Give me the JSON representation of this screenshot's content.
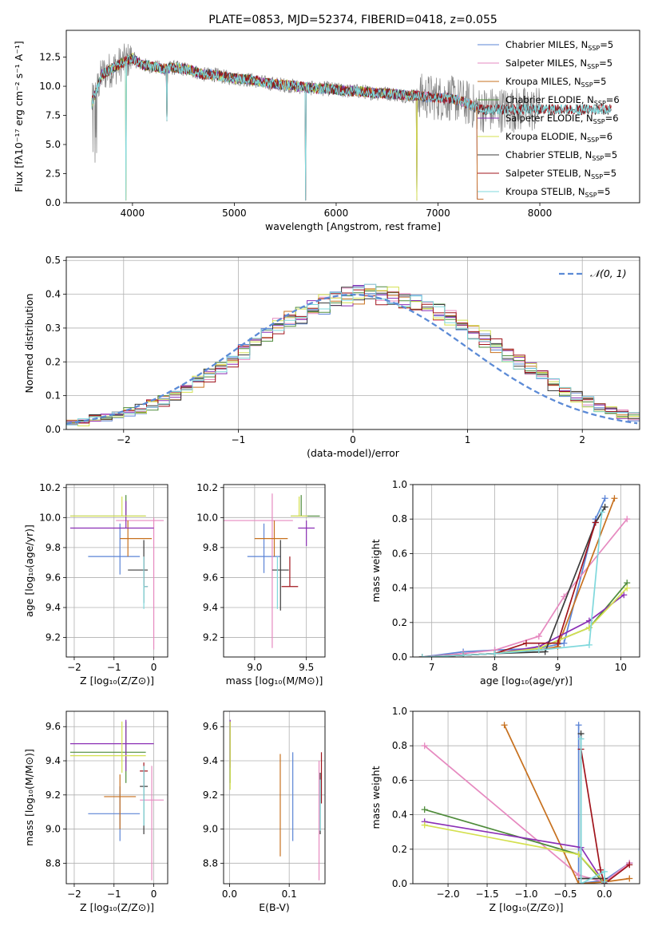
{
  "colors": [
    "#5b84d6",
    "#e68ac0",
    "#c7711f",
    "#4e8b3a",
    "#8b2fb5",
    "#d4e04f",
    "#3c3c3c",
    "#a0141c",
    "#7fd8dc"
  ],
  "chart_data": [
    {
      "id": "spectrum",
      "type": "line",
      "title": "PLATE=0853, MJD=52374, FIBERID=0418, z=0.055",
      "xlabel": "wavelength [Angstrom, rest frame]",
      "ylabel": "Flux [fλ10⁻¹⁷ erg cm⁻² s⁻¹ A⁻¹]",
      "xlim": [
        3350,
        8980
      ],
      "ylim": [
        0,
        14.8
      ],
      "xticks": [
        4000,
        5000,
        6000,
        7000,
        8000
      ],
      "yticks": [
        0.0,
        2.5,
        5.0,
        7.5,
        10.0,
        12.5
      ],
      "grid": false,
      "legend_position": "top-right",
      "data_line": {
        "x": [
          3600,
          3700,
          3800,
          3900,
          4000,
          4100,
          4200,
          4300,
          4400,
          4500,
          4600,
          4700,
          4800,
          4900,
          5000,
          5100,
          5200,
          5300,
          5400,
          5500,
          5600,
          5700,
          5800,
          5900,
          6000,
          6100,
          6200,
          6300,
          6400,
          6500,
          6600,
          6700,
          6800,
          6900,
          7000,
          7100,
          7200,
          7300,
          7400
        ],
        "y": [
          8.5,
          11.0,
          11.5,
          12.0,
          12.4,
          11.8,
          11.7,
          11.5,
          11.6,
          11.5,
          11.3,
          11.0,
          11.0,
          10.8,
          10.7,
          10.6,
          10.5,
          10.3,
          10.2,
          10.1,
          10.0,
          9.9,
          9.8,
          9.8,
          9.7,
          9.6,
          9.6,
          9.5,
          9.4,
          9.4,
          9.3,
          9.2,
          9.2,
          9.1,
          9.0,
          9.0,
          8.8,
          8.5,
          8.0
        ]
      },
      "series": [
        {
          "name": "Chabrier MILES, N_SSP=5",
          "x_end": 7450
        },
        {
          "name": "Salpeter MILES, N_SSP=5",
          "x_end": 7450
        },
        {
          "name": "Kroupa MILES, N_SSP=5",
          "x_end": 7450
        },
        {
          "name": "Chabrier ELODIE, N_SSP=6",
          "x_end": 6800
        },
        {
          "name": "Salpeter ELODIE, N_SSP=6",
          "x_end": 6800
        },
        {
          "name": "Kroupa ELODIE, N_SSP=6",
          "x_end": 6800
        },
        {
          "name": "Chabrier STELIB, N_SSP=5",
          "x_end": 8700
        },
        {
          "name": "Salpeter STELIB, N_SSP=5",
          "x_end": 8700
        },
        {
          "name": "Kroupa STELIB, N_SSP=5",
          "x_end": 8700
        }
      ]
    },
    {
      "id": "residuals",
      "type": "bar",
      "xlabel": "(data-model)/error",
      "ylabel": "Normed distribution",
      "xlim": [
        -2.5,
        2.5
      ],
      "ylim": [
        0,
        0.51
      ],
      "xticks": [
        -2,
        -1,
        0,
        1,
        2
      ],
      "yticks": [
        0.0,
        0.1,
        0.2,
        0.3,
        0.4,
        0.5
      ],
      "grid": true,
      "legend_position": "top-right",
      "legend_label": "𝒩(0, 1)",
      "bin_width": 0.1,
      "base_values": [
        0.02,
        0.021,
        0.032,
        0.037,
        0.045,
        0.052,
        0.06,
        0.072,
        0.085,
        0.099,
        0.117,
        0.14,
        0.16,
        0.185,
        0.205,
        0.23,
        0.255,
        0.28,
        0.305,
        0.325,
        0.34,
        0.355,
        0.37,
        0.385,
        0.395,
        0.4,
        0.4,
        0.398,
        0.392,
        0.383,
        0.372,
        0.36,
        0.346,
        0.33,
        0.311,
        0.29,
        0.268,
        0.245,
        0.222,
        0.198,
        0.176,
        0.154,
        0.133,
        0.114,
        0.097,
        0.082,
        0.068,
        0.056,
        0.045,
        0.037
      ]
    },
    {
      "id": "age-vs-z",
      "type": "scatter",
      "xlabel": "Z [log₁₀(Z/Z⊙)]",
      "ylabel": "age  [log₁₀(age/yr)]",
      "xlim": [
        -2.2,
        0.35
      ],
      "ylim": [
        9.07,
        10.22
      ],
      "xticks": [
        -2,
        -1,
        0
      ],
      "yticks": [
        9.2,
        9.4,
        9.6,
        9.8,
        10.0,
        10.2
      ],
      "grid": true,
      "points": [
        {
          "x": -0.85,
          "y": 9.74,
          "xerr": [
            0.8,
            0.5
          ],
          "yerr": [
            0.12,
            0.22
          ]
        },
        {
          "x": 0.0,
          "y": 9.98,
          "xerr": [
            0.95,
            0.25
          ],
          "yerr": [
            0.86,
            0.02
          ]
        },
        {
          "x": -0.65,
          "y": 9.86,
          "xerr": [
            0.2,
            0.6
          ],
          "yerr": [
            0.12,
            0.12
          ]
        },
        {
          "x": -0.7,
          "y": 10.01,
          "xerr": [
            1.4,
            0.5
          ],
          "yerr": [
            0.0,
            0.14
          ]
        },
        {
          "x": -0.7,
          "y": 9.93,
          "xerr": [
            1.4,
            0.7
          ],
          "yerr": [
            0.0,
            0.18
          ]
        },
        {
          "x": -0.8,
          "y": 10.01,
          "xerr": [
            1.3,
            0.6
          ],
          "yerr": [
            0.0,
            0.13
          ]
        },
        {
          "x": -0.25,
          "y": 9.65,
          "xerr": [
            0.4,
            0.1
          ],
          "yerr": [
            0.22,
            0.2
          ]
        },
        {
          "x": -0.25,
          "y": 9.54,
          "xerr": [
            0.0,
            0.1
          ],
          "yerr": [
            0.0,
            0.2
          ]
        },
        {
          "x": -0.25,
          "y": 9.54,
          "xerr": [
            0.0,
            0.1
          ],
          "yerr": [
            0.15,
            0.2
          ]
        }
      ]
    },
    {
      "id": "age-vs-mass",
      "type": "scatter",
      "xlabel": "mass [log₁₀(M/M⊙)]",
      "ylabel": "",
      "xlim": [
        8.7,
        9.68
      ],
      "ylim": [
        9.07,
        10.22
      ],
      "xticks": [
        9.0,
        9.5
      ],
      "yticks": [
        9.2,
        9.4,
        9.6,
        9.8,
        10.0,
        10.2
      ],
      "grid": true,
      "points": [
        {
          "x": 9.09,
          "y": 9.74,
          "xerr": [
            0.16,
            0.16
          ],
          "yerr": [
            0.11,
            0.22
          ]
        },
        {
          "x": 9.17,
          "y": 9.98,
          "xerr": [
            0.47,
            0.2
          ],
          "yerr": [
            0.85,
            0.18
          ]
        },
        {
          "x": 9.19,
          "y": 9.86,
          "xerr": [
            0.19,
            0.13
          ],
          "yerr": [
            0.12,
            0.12
          ]
        },
        {
          "x": 9.45,
          "y": 10.01,
          "xerr": [
            0.1,
            0.18
          ],
          "yerr": [
            0.0,
            0.14
          ]
        },
        {
          "x": 9.5,
          "y": 9.93,
          "xerr": [
            0.08,
            0.08
          ],
          "yerr": [
            0.12,
            0.05
          ]
        },
        {
          "x": 9.43,
          "y": 10.01,
          "xerr": [
            0.08,
            0.08
          ],
          "yerr": [
            0.0,
            0.13
          ]
        },
        {
          "x": 9.25,
          "y": 9.65,
          "xerr": [
            0.08,
            0.08
          ],
          "yerr": [
            0.27,
            0.2
          ]
        },
        {
          "x": 9.34,
          "y": 9.54,
          "xerr": [
            0.08,
            0.08
          ],
          "yerr": [
            0.0,
            0.2
          ]
        },
        {
          "x": 9.22,
          "y": 9.54,
          "xerr": [
            0.0,
            0.0
          ],
          "yerr": [
            0.15,
            0.2
          ]
        }
      ]
    },
    {
      "id": "weight-vs-age",
      "type": "line",
      "xlabel": "age  [log₁₀(age/yr)]",
      "ylabel": "mass weight",
      "xlim": [
        6.7,
        10.3
      ],
      "ylim": [
        0,
        1.0
      ],
      "xticks": [
        7,
        8,
        9,
        10
      ],
      "yticks": [
        0.0,
        0.2,
        0.4,
        0.6,
        0.8,
        1.0
      ],
      "grid": true,
      "series": [
        {
          "x": [
            6.85,
            7.5,
            8.0,
            8.7,
            9.1,
            9.6,
            9.75
          ],
          "y": [
            0.0,
            0.03,
            0.04,
            0.05,
            0.08,
            0.8,
            0.92
          ]
        },
        {
          "x": [
            6.85,
            7.5,
            8.0,
            8.7,
            9.1,
            10.1
          ],
          "y": [
            0.0,
            0.02,
            0.04,
            0.12,
            0.35,
            0.8
          ]
        },
        {
          "x": [
            6.85,
            7.5,
            8.0,
            8.7,
            9.0,
            9.9
          ],
          "y": [
            0.0,
            0.01,
            0.02,
            0.04,
            0.06,
            0.92
          ]
        },
        {
          "x": [
            6.85,
            7.5,
            8.0,
            8.7,
            9.5,
            10.1
          ],
          "y": [
            0.0,
            0.01,
            0.02,
            0.05,
            0.17,
            0.43
          ]
        },
        {
          "x": [
            6.85,
            7.5,
            8.0,
            8.7,
            9.5,
            10.05
          ],
          "y": [
            0.0,
            0.01,
            0.02,
            0.06,
            0.21,
            0.36
          ]
        },
        {
          "x": [
            6.85,
            7.5,
            8.0,
            8.7,
            9.5,
            10.1
          ],
          "y": [
            0.0,
            0.01,
            0.02,
            0.05,
            0.17,
            0.4
          ]
        },
        {
          "x": [
            6.85,
            7.5,
            8.0,
            8.8,
            9.6,
            9.75
          ],
          "y": [
            0.0,
            0.01,
            0.02,
            0.03,
            0.78,
            0.87
          ]
        },
        {
          "x": [
            6.85,
            7.5,
            8.0,
            8.5,
            9.0,
            9.6
          ],
          "y": [
            0.0,
            0.01,
            0.02,
            0.08,
            0.08,
            0.78
          ]
        },
        {
          "x": [
            6.85,
            7.5,
            8.0,
            8.7,
            9.5,
            9.7
          ],
          "y": [
            0.0,
            0.01,
            0.02,
            0.04,
            0.07,
            0.84
          ]
        }
      ]
    },
    {
      "id": "mass-vs-z",
      "type": "scatter",
      "xlabel": "Z [log₁₀(Z/Z⊙)]",
      "ylabel": "mass [log₁₀(M/M⊙)]",
      "xlim": [
        -2.2,
        0.35
      ],
      "ylim": [
        8.68,
        9.69
      ],
      "xticks": [
        -2,
        -1,
        0
      ],
      "yticks": [
        8.8,
        9.0,
        9.2,
        9.4,
        9.6
      ],
      "grid": true,
      "points": [
        {
          "x": -0.85,
          "y": 9.09,
          "xerr": [
            0.8,
            0.5
          ],
          "yerr": [
            0.16,
            0.16
          ]
        },
        {
          "x": -0.05,
          "y": 9.17,
          "xerr": [
            0.3,
            0.3
          ],
          "yerr": [
            0.47,
            0.2
          ]
        },
        {
          "x": -0.85,
          "y": 9.19,
          "xerr": [
            0.4,
            0.4
          ],
          "yerr": [
            0.19,
            0.13
          ]
        },
        {
          "x": -0.7,
          "y": 9.45,
          "xerr": [
            1.4,
            0.5
          ],
          "yerr": [
            0.18,
            0.18
          ]
        },
        {
          "x": -0.7,
          "y": 9.5,
          "xerr": [
            1.4,
            0.7
          ],
          "yerr": [
            0.16,
            0.14
          ]
        },
        {
          "x": -0.8,
          "y": 9.43,
          "xerr": [
            1.3,
            0.6
          ],
          "yerr": [
            0.1,
            0.2
          ]
        },
        {
          "x": -0.25,
          "y": 9.25,
          "xerr": [
            0.1,
            0.1
          ],
          "yerr": [
            0.28,
            0.1
          ]
        },
        {
          "x": -0.25,
          "y": 9.34,
          "xerr": [
            0.1,
            0.1
          ],
          "yerr": [
            0.1,
            0.05
          ]
        },
        {
          "x": -0.25,
          "y": 9.22,
          "xerr": [
            0.0,
            0.0
          ],
          "yerr": [
            0.2,
            0.15
          ]
        }
      ]
    },
    {
      "id": "mass-vs-ebv",
      "type": "scatter",
      "xlabel": "E(B-V)",
      "ylabel": "",
      "xlim": [
        -0.01,
        0.16
      ],
      "ylim": [
        8.68,
        9.69
      ],
      "xticks": [
        0.0,
        0.1
      ],
      "yticks": [
        8.8,
        9.0,
        9.2,
        9.4,
        9.6
      ],
      "grid": true,
      "points": [
        {
          "x": 0.106,
          "y": 9.19,
          "xerr": [
            0,
            0
          ],
          "yerr": [
            0.26,
            0.26
          ]
        },
        {
          "x": 0.15,
          "y": 9.05,
          "xerr": [
            0,
            0
          ],
          "yerr": [
            0.35,
            0.35
          ]
        },
        {
          "x": 0.085,
          "y": 9.14,
          "xerr": [
            0,
            0
          ],
          "yerr": [
            0.3,
            0.3
          ]
        },
        {
          "x": 0.001,
          "y": 9.45,
          "xerr": [
            0,
            0
          ],
          "yerr": [
            0.18,
            0.18
          ]
        },
        {
          "x": 0.001,
          "y": 9.5,
          "xerr": [
            0,
            0
          ],
          "yerr": [
            0.14,
            0.14
          ]
        },
        {
          "x": 0.001,
          "y": 9.43,
          "xerr": [
            0,
            0
          ],
          "yerr": [
            0.2,
            0.2
          ]
        },
        {
          "x": 0.152,
          "y": 9.15,
          "xerr": [
            0,
            0
          ],
          "yerr": [
            0.18,
            0.18
          ]
        },
        {
          "x": 0.154,
          "y": 9.3,
          "xerr": [
            0,
            0
          ],
          "yerr": [
            0.15,
            0.15
          ]
        },
        {
          "x": 0.152,
          "y": 9.14,
          "xerr": [
            0,
            0
          ],
          "yerr": [
            0.15,
            0.15
          ]
        }
      ]
    },
    {
      "id": "weight-vs-z",
      "type": "line",
      "xlabel": "Z [log₁₀(Z/Z⊙)]",
      "ylabel": "mass weight",
      "xlim": [
        -2.45,
        0.45
      ],
      "ylim": [
        0,
        1.0
      ],
      "xticks": [
        -2.0,
        -1.5,
        -1.0,
        -0.5,
        0.0
      ],
      "yticks": [
        0.0,
        0.2,
        0.4,
        0.6,
        0.8,
        1.0
      ],
      "grid": true,
      "series": [
        {
          "x": [
            -0.33,
            -0.33,
            0.0,
            0.32
          ],
          "y": [
            0.92,
            0.0,
            0.02,
            0.12
          ]
        },
        {
          "x": [
            -2.3,
            -0.33,
            0.0,
            0.32
          ],
          "y": [
            0.8,
            0.05,
            0.01,
            0.12
          ]
        },
        {
          "x": [
            -1.28,
            -0.33,
            0.0,
            0.32
          ],
          "y": [
            0.92,
            0.0,
            0.01,
            0.03
          ]
        },
        {
          "x": [
            -2.3,
            -0.33,
            0.0,
            0.0
          ],
          "y": [
            0.43,
            0.17,
            0.0,
            0.03
          ]
        },
        {
          "x": [
            -2.3,
            -0.3,
            0.0,
            0.0
          ],
          "y": [
            0.36,
            0.21,
            0.0,
            0.02
          ]
        },
        {
          "x": [
            -2.3,
            -0.33,
            0.0,
            0.0
          ],
          "y": [
            0.34,
            0.17,
            0.01,
            0.02
          ]
        },
        {
          "x": [
            -0.3,
            -0.3,
            0.0,
            0.0
          ],
          "y": [
            0.87,
            0.03,
            0.03,
            0.0
          ]
        },
        {
          "x": [
            -0.3,
            -0.05,
            0.0,
            0.32
          ],
          "y": [
            0.78,
            0.08,
            0.0,
            0.11
          ]
        },
        {
          "x": [
            -0.3,
            -0.3,
            0.0,
            0.0
          ],
          "y": [
            0.84,
            0.0,
            0.07,
            0.01
          ]
        }
      ]
    }
  ]
}
